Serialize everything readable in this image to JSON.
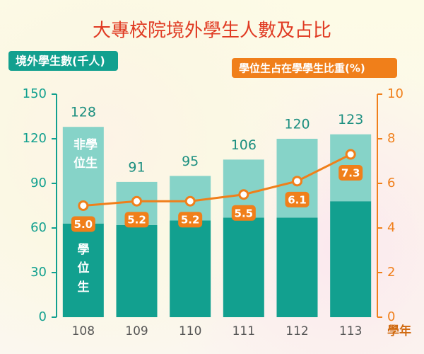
{
  "chart_data": {
    "type": "bar",
    "stacked": true,
    "title": "大專校院境外學生人數及占比",
    "y_label": "境外學生數(千人)",
    "y2_label": "學位生占在學學生比重(%)",
    "x_label": "學年",
    "categories": [
      "108",
      "109",
      "110",
      "111",
      "112",
      "113"
    ],
    "series": [
      {
        "name": "學位生",
        "color": "#12a08f",
        "values": [
          63,
          62,
          65,
          67,
          67,
          78
        ]
      },
      {
        "name": "非學位生",
        "color": "#86d3c8",
        "values": [
          65,
          29,
          30,
          39,
          53,
          45
        ]
      }
    ],
    "total_labels": [
      128,
      91,
      95,
      106,
      120,
      123
    ],
    "line": {
      "type": "line",
      "axis": "y2",
      "color": "#f07f1a",
      "values": [
        5.0,
        5.2,
        5.2,
        5.5,
        6.1,
        7.3
      ],
      "value_labels": [
        "5.0",
        "5.2",
        "5.2",
        "5.5",
        "6.1",
        "7.3"
      ]
    },
    "ylim": [
      0,
      150
    ],
    "yticks": [
      0,
      30,
      60,
      90,
      120,
      150
    ],
    "y2lim": [
      0,
      10
    ],
    "y2ticks": [
      0,
      2,
      4,
      6,
      8,
      10
    ]
  }
}
